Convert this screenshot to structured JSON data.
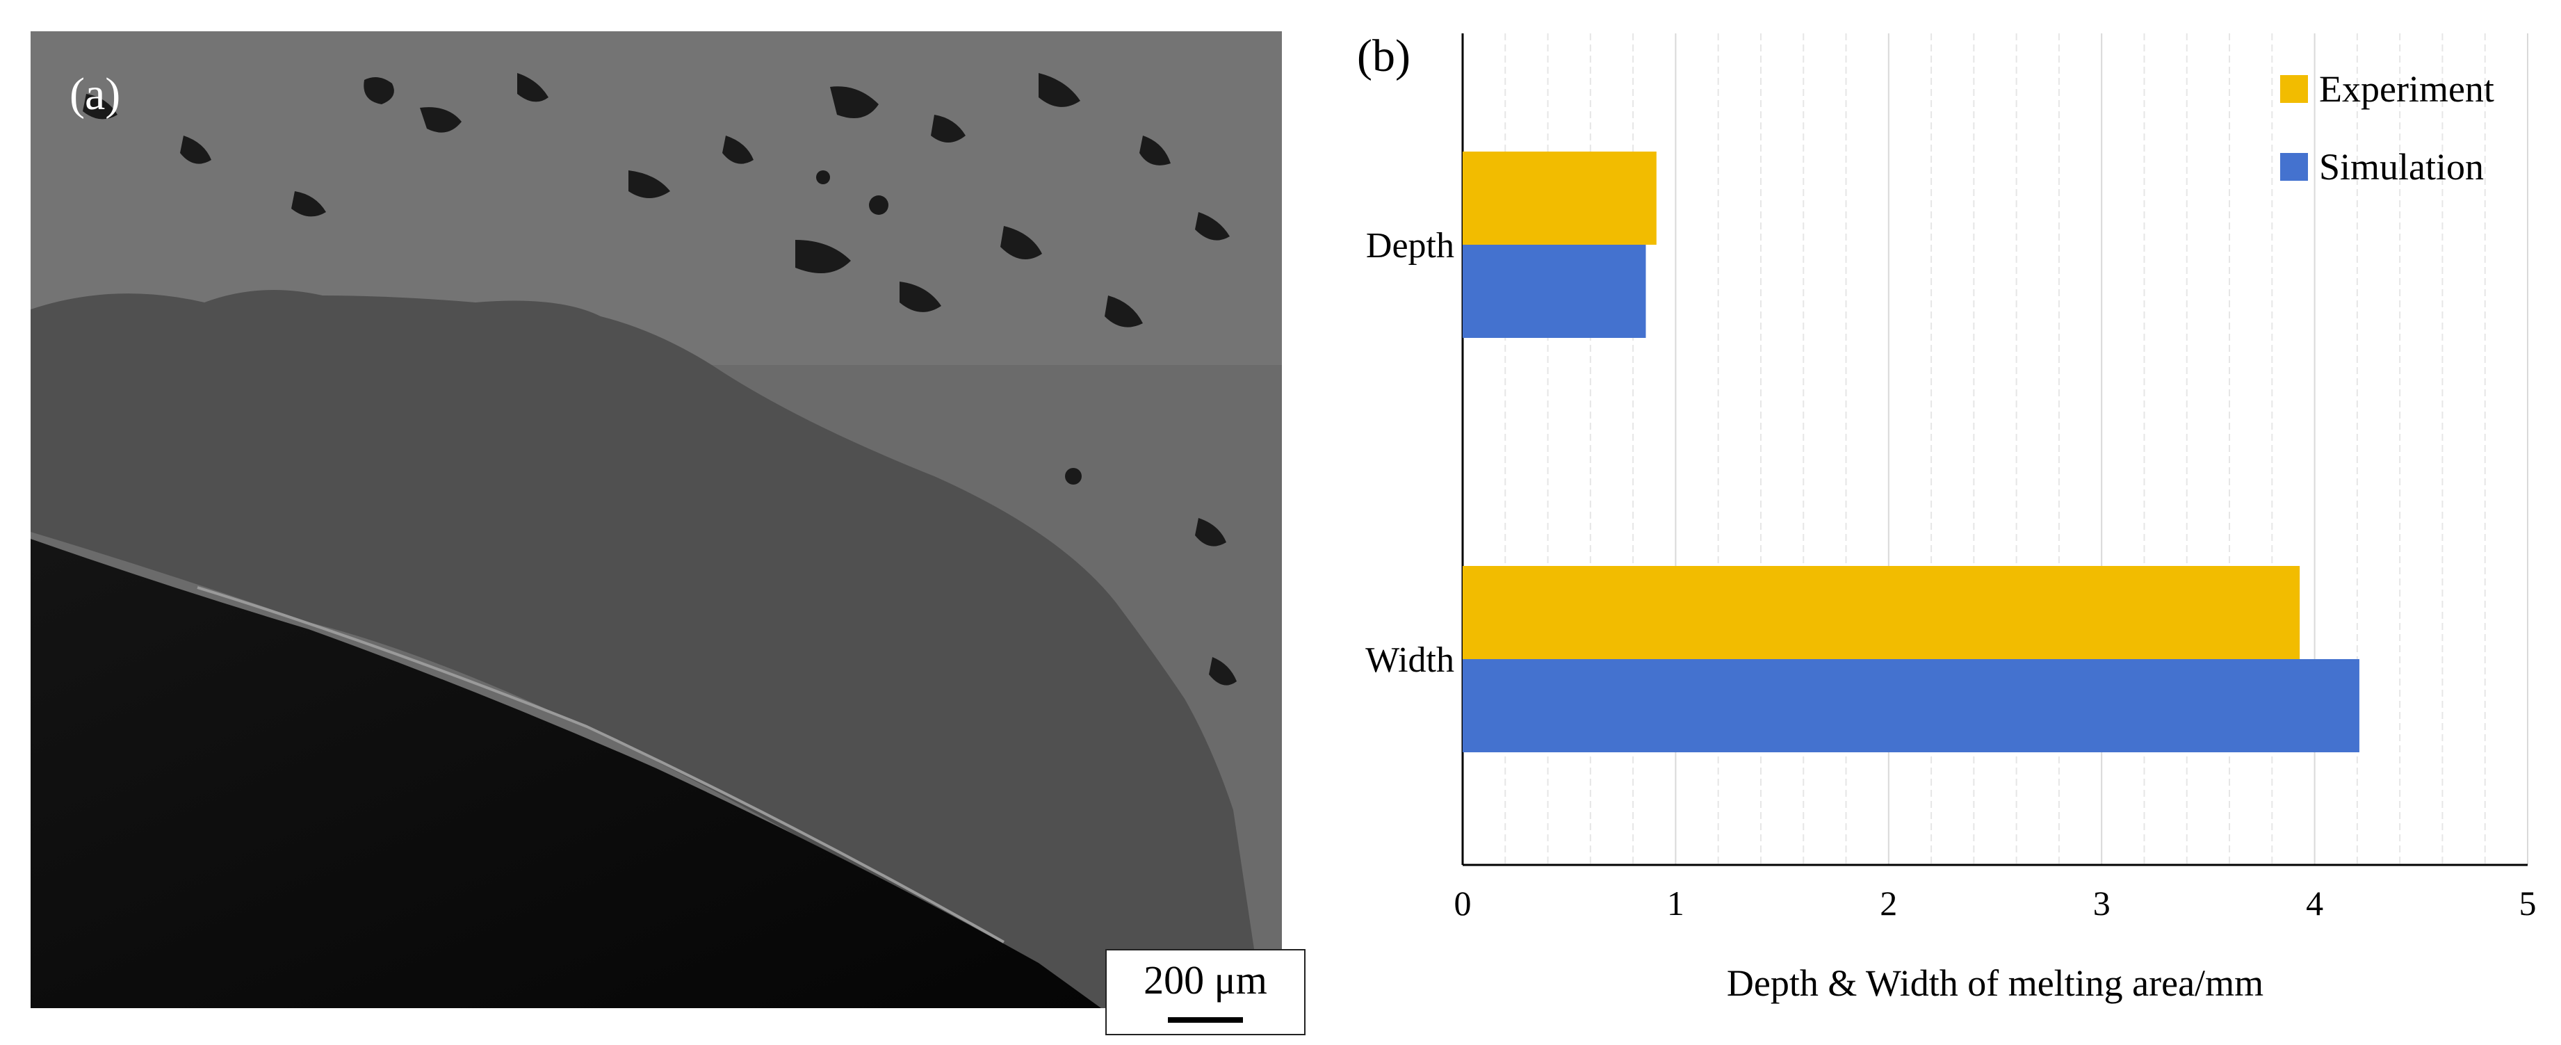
{
  "panel_a": {
    "label": "(a)",
    "scale_bar": "200 μm"
  },
  "panel_b": {
    "label": "(b)"
  },
  "colors": {
    "experiment": "#F2BC00",
    "simulation": "#4472CF",
    "grid_major": "#d9d9d9",
    "grid_minor": "#e6e6e6"
  },
  "chart_data": {
    "type": "bar",
    "orientation": "horizontal",
    "categories": [
      "Depth",
      "Width"
    ],
    "series": [
      {
        "name": "Experiment",
        "values": [
          0.91,
          3.93
        ]
      },
      {
        "name": "Simulation",
        "values": [
          0.86,
          4.21
        ]
      }
    ],
    "xlabel": "Depth & Width of melting area/mm",
    "ylabel": "",
    "xlim": [
      0,
      5
    ],
    "xticks": [
      "0",
      "1",
      "2",
      "3",
      "4",
      "5"
    ],
    "grid": "vertical major and minor",
    "legend": "top-right"
  }
}
